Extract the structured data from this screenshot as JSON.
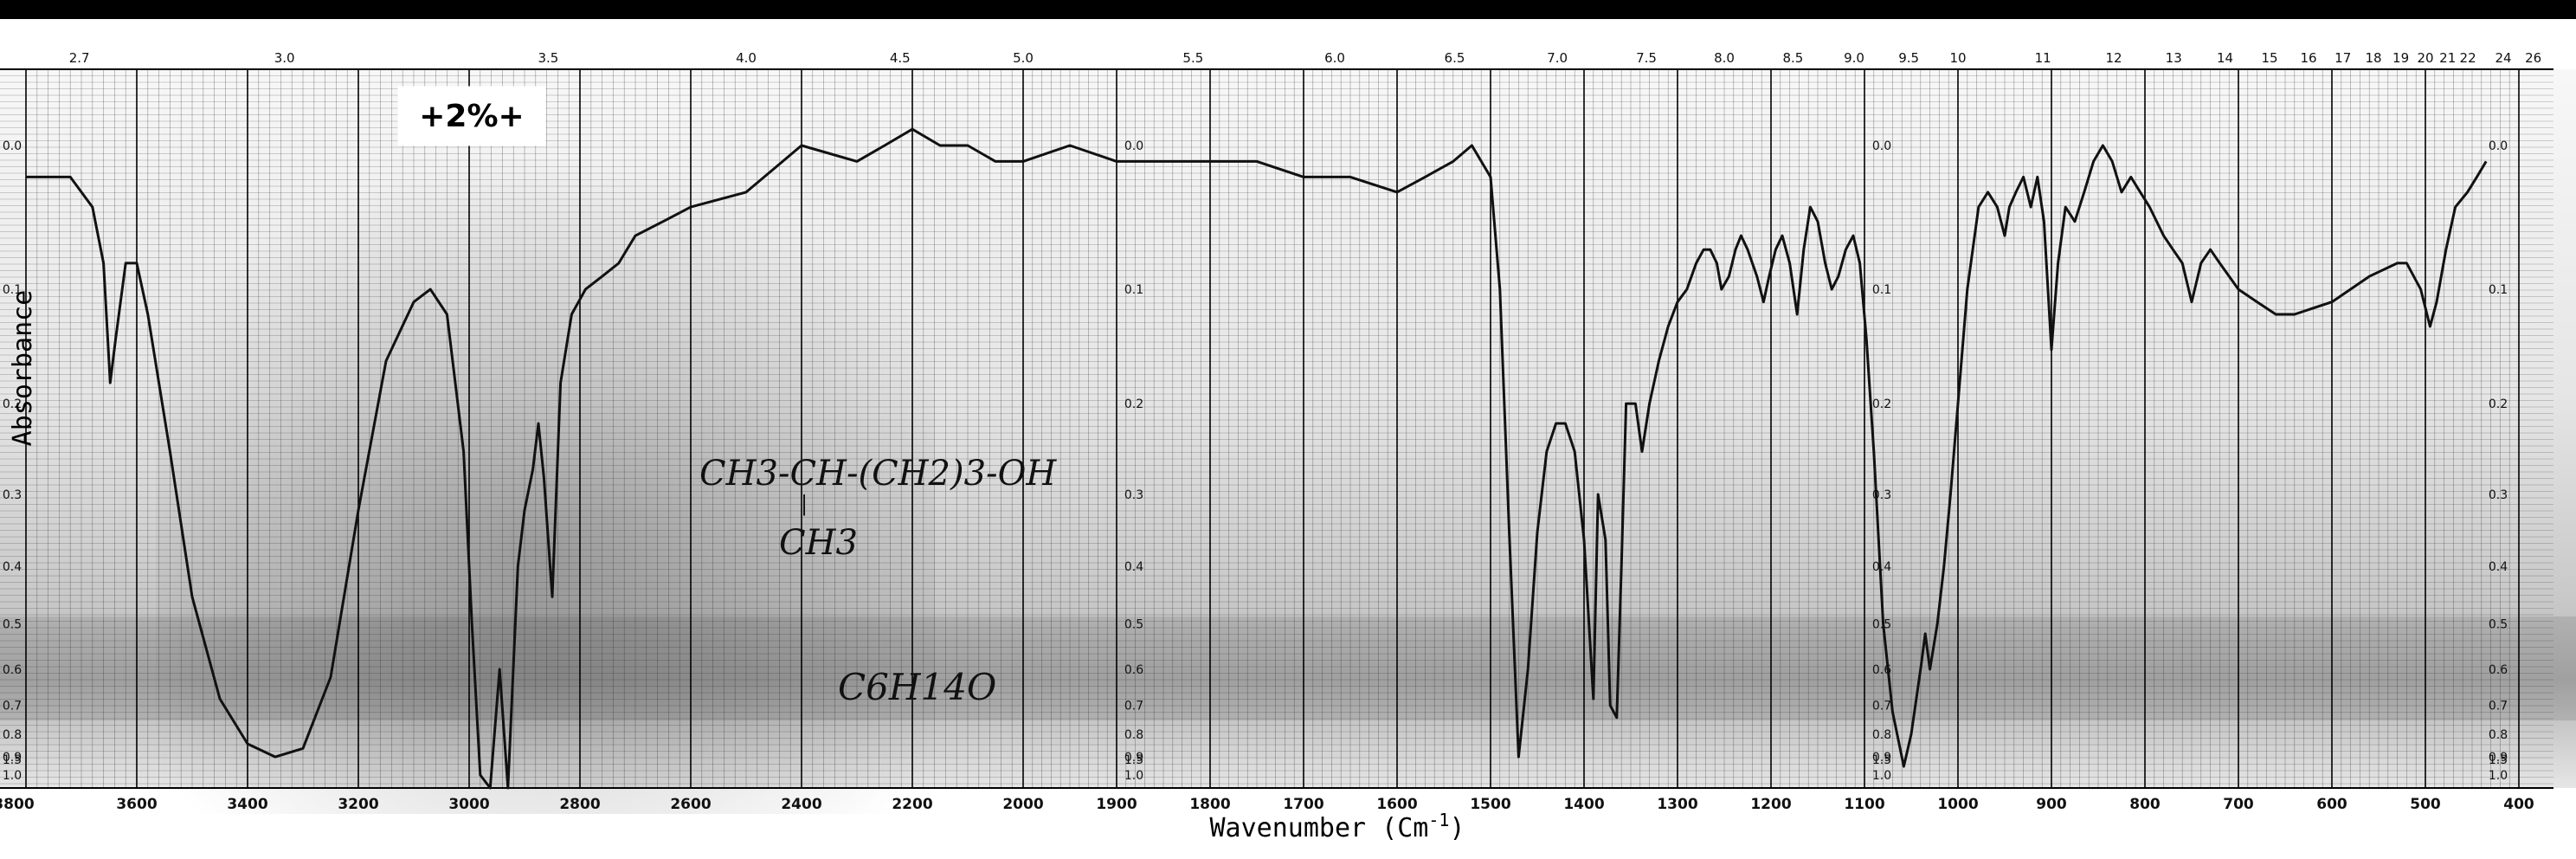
{
  "chart_data": {
    "type": "line",
    "xlabel": "Wavenumber (Cm-1)",
    "xlabel_parts": [
      "Wavenumber (Cm",
      "-1",
      ")"
    ],
    "ylabel": "Absorbance",
    "scale_mark": "+2%+",
    "structure_annotation": {
      "line1": "CH3-CH-(CH2)3-OH",
      "line2": "CH3",
      "formula": "C6H14O"
    },
    "x_axis_bottom": {
      "unit": "cm-1",
      "range": [
        3800,
        400
      ],
      "ticks": [
        3800,
        3600,
        3400,
        3200,
        3000,
        2800,
        2600,
        2400,
        2200,
        2000,
        1900,
        1800,
        1700,
        1600,
        1500,
        1400,
        1300,
        1200,
        1100,
        1000,
        900,
        800,
        700,
        600,
        500,
        400
      ],
      "tick_labels": [
        "3800",
        "3600",
        "3400",
        "3200",
        "3000",
        "2800",
        "2600",
        "2400",
        "2200",
        "2000",
        "1900",
        "1800",
        "1700",
        "1600",
        "1500",
        "1400",
        "1300",
        "1200",
        "1100",
        "1000",
        "900",
        "800",
        "700",
        "600",
        "500",
        "400"
      ]
    },
    "x_axis_top": {
      "unit": "microns",
      "labels": [
        "2.7",
        "3.0",
        "3.5",
        "4.0",
        "4.5",
        "5.0",
        "5.5",
        "6.0",
        "6.5",
        "7.0",
        "7.5",
        "8.0",
        "8.5",
        "9.0",
        "9.5",
        "10",
        "11",
        "12",
        "13",
        "14",
        "15",
        "16",
        "17",
        "18",
        "19",
        "20",
        "21",
        "22",
        "24",
        "26"
      ]
    },
    "y_axis": {
      "label": "Absorbance",
      "range": [
        0.0,
        1.6
      ],
      "ticks": [
        0.0,
        0.1,
        0.2,
        0.3,
        0.4,
        0.5,
        0.6,
        0.7,
        0.8,
        0.9,
        1.0,
        1.5
      ],
      "tick_labels": [
        "0.0",
        "0.1",
        "0.2",
        "0.3",
        "0.4",
        "0.5",
        "0.6",
        "0.7",
        "0.8",
        "0.9",
        "1.0",
        "1.5"
      ],
      "scale": "logarithmic (transmittance paper)"
    },
    "grid": true,
    "series": [
      {
        "points": [
          [
            3800,
            0.02
          ],
          [
            3720,
            0.02
          ],
          [
            3680,
            0.04
          ],
          [
            3660,
            0.08
          ],
          [
            3648,
            0.18
          ],
          [
            3638,
            0.14
          ],
          [
            3620,
            0.08
          ],
          [
            3600,
            0.08
          ],
          [
            3580,
            0.12
          ],
          [
            3540,
            0.25
          ],
          [
            3500,
            0.45
          ],
          [
            3450,
            0.68
          ],
          [
            3400,
            0.84
          ],
          [
            3350,
            0.9
          ],
          [
            3300,
            0.86
          ],
          [
            3250,
            0.62
          ],
          [
            3200,
            0.32
          ],
          [
            3150,
            0.16
          ],
          [
            3100,
            0.11
          ],
          [
            3070,
            0.1
          ],
          [
            3040,
            0.12
          ],
          [
            3010,
            0.25
          ],
          [
            2995,
            0.5
          ],
          [
            2980,
            1.0
          ],
          [
            2962,
            1.58
          ],
          [
            2945,
            0.6
          ],
          [
            2930,
            1.5
          ],
          [
            2912,
            0.4
          ],
          [
            2900,
            0.32
          ],
          [
            2885,
            0.27
          ],
          [
            2875,
            0.22
          ],
          [
            2865,
            0.28
          ],
          [
            2850,
            0.45
          ],
          [
            2835,
            0.18
          ],
          [
            2815,
            0.12
          ],
          [
            2790,
            0.1
          ],
          [
            2760,
            0.09
          ],
          [
            2730,
            0.08
          ],
          [
            2700,
            0.06
          ],
          [
            2650,
            0.05
          ],
          [
            2600,
            0.04
          ],
          [
            2500,
            0.03
          ],
          [
            2400,
            0.0
          ],
          [
            2300,
            0.01
          ],
          [
            2250,
            0.0
          ],
          [
            2200,
            -0.01
          ],
          [
            2150,
            0.0
          ],
          [
            2100,
            0.0
          ],
          [
            2050,
            0.01
          ],
          [
            2000,
            0.01
          ],
          [
            1950,
            0.0
          ],
          [
            1900,
            0.01
          ],
          [
            1850,
            0.01
          ],
          [
            1800,
            0.01
          ],
          [
            1750,
            0.01
          ],
          [
            1700,
            0.02
          ],
          [
            1650,
            0.02
          ],
          [
            1600,
            0.03
          ],
          [
            1570,
            0.02
          ],
          [
            1540,
            0.01
          ],
          [
            1520,
            0.0
          ],
          [
            1500,
            0.02
          ],
          [
            1490,
            0.1
          ],
          [
            1480,
            0.35
          ],
          [
            1470,
            0.9
          ],
          [
            1460,
            0.6
          ],
          [
            1450,
            0.35
          ],
          [
            1440,
            0.25
          ],
          [
            1430,
            0.22
          ],
          [
            1420,
            0.22
          ],
          [
            1410,
            0.25
          ],
          [
            1400,
            0.36
          ],
          [
            1390,
            0.68
          ],
          [
            1385,
            0.3
          ],
          [
            1377,
            0.36
          ],
          [
            1372,
            0.7
          ],
          [
            1365,
            0.74
          ],
          [
            1360,
            0.4
          ],
          [
            1355,
            0.2
          ],
          [
            1345,
            0.2
          ],
          [
            1338,
            0.25
          ],
          [
            1330,
            0.2
          ],
          [
            1320,
            0.16
          ],
          [
            1310,
            0.13
          ],
          [
            1300,
            0.11
          ],
          [
            1290,
            0.1
          ],
          [
            1280,
            0.08
          ],
          [
            1272,
            0.07
          ],
          [
            1265,
            0.07
          ],
          [
            1258,
            0.08
          ],
          [
            1253,
            0.1
          ],
          [
            1245,
            0.09
          ],
          [
            1238,
            0.07
          ],
          [
            1232,
            0.06
          ],
          [
            1225,
            0.07
          ],
          [
            1215,
            0.09
          ],
          [
            1208,
            0.11
          ],
          [
            1202,
            0.09
          ],
          [
            1195,
            0.07
          ],
          [
            1188,
            0.06
          ],
          [
            1180,
            0.08
          ],
          [
            1172,
            0.12
          ],
          [
            1165,
            0.07
          ],
          [
            1158,
            0.04
          ],
          [
            1150,
            0.05
          ],
          [
            1142,
            0.08
          ],
          [
            1135,
            0.1
          ],
          [
            1128,
            0.09
          ],
          [
            1120,
            0.07
          ],
          [
            1112,
            0.06
          ],
          [
            1105,
            0.08
          ],
          [
            1098,
            0.14
          ],
          [
            1090,
            0.25
          ],
          [
            1080,
            0.5
          ],
          [
            1070,
            0.72
          ],
          [
            1058,
            0.95
          ],
          [
            1050,
            0.8
          ],
          [
            1040,
            0.6
          ],
          [
            1035,
            0.52
          ],
          [
            1030,
            0.6
          ],
          [
            1022,
            0.5
          ],
          [
            1015,
            0.4
          ],
          [
            1008,
            0.3
          ],
          [
            1000,
            0.2
          ],
          [
            990,
            0.1
          ],
          [
            978,
            0.04
          ],
          [
            968,
            0.03
          ],
          [
            958,
            0.04
          ],
          [
            950,
            0.06
          ],
          [
            945,
            0.04
          ],
          [
            938,
            0.03
          ],
          [
            930,
            0.02
          ],
          [
            922,
            0.04
          ],
          [
            915,
            0.02
          ],
          [
            908,
            0.05
          ],
          [
            900,
            0.15
          ],
          [
            893,
            0.08
          ],
          [
            885,
            0.04
          ],
          [
            875,
            0.05
          ],
          [
            865,
            0.03
          ],
          [
            855,
            0.01
          ],
          [
            845,
            0.0
          ],
          [
            835,
            0.01
          ],
          [
            825,
            0.03
          ],
          [
            815,
            0.02
          ],
          [
            805,
            0.03
          ],
          [
            795,
            0.04
          ],
          [
            780,
            0.06
          ],
          [
            770,
            0.07
          ],
          [
            760,
            0.08
          ],
          [
            750,
            0.11
          ],
          [
            740,
            0.08
          ],
          [
            730,
            0.07
          ],
          [
            720,
            0.08
          ],
          [
            700,
            0.1
          ],
          [
            680,
            0.11
          ],
          [
            660,
            0.12
          ],
          [
            640,
            0.12
          ],
          [
            600,
            0.11
          ],
          [
            560,
            0.09
          ],
          [
            530,
            0.08
          ],
          [
            520,
            0.08
          ],
          [
            505,
            0.1
          ],
          [
            495,
            0.13
          ],
          [
            488,
            0.11
          ],
          [
            478,
            0.07
          ],
          [
            468,
            0.04
          ],
          [
            455,
            0.03
          ],
          [
            445,
            0.02
          ],
          [
            435,
            0.01
          ]
        ]
      }
    ]
  }
}
